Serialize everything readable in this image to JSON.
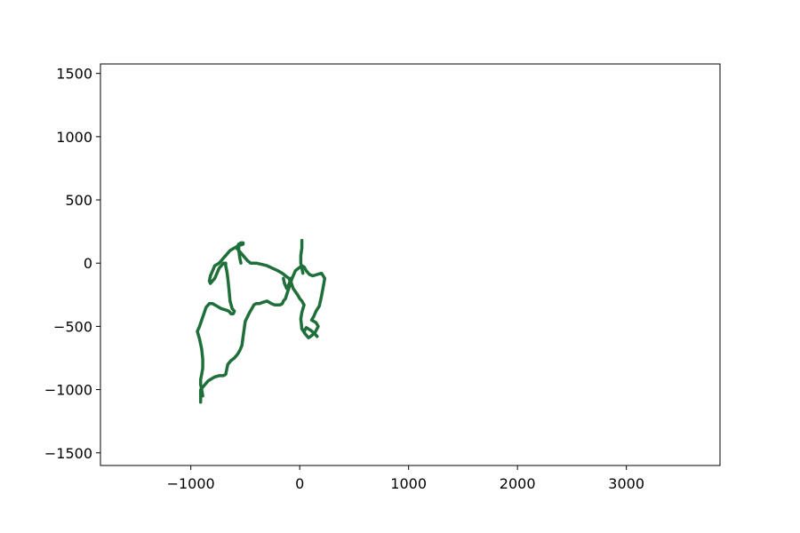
{
  "chart_data": {
    "type": "line",
    "title": "",
    "xlabel": "",
    "ylabel": "",
    "xlim": [
      -1830,
      3860
    ],
    "ylim": [
      -1600,
      1575
    ],
    "grid": false,
    "legend": "none",
    "x_ticks": [
      {
        "value": -1000,
        "label": "−1000"
      },
      {
        "value": 0,
        "label": "0"
      },
      {
        "value": 1000,
        "label": "1000"
      },
      {
        "value": 2000,
        "label": "2000"
      },
      {
        "value": 3000,
        "label": "3000"
      }
    ],
    "y_ticks": [
      {
        "value": 1500,
        "label": "1500"
      },
      {
        "value": 1000,
        "label": "1000"
      },
      {
        "value": 500,
        "label": "500"
      },
      {
        "value": 0,
        "label": "0"
      },
      {
        "value": -500,
        "label": "−500"
      },
      {
        "value": -1000,
        "label": "−1000"
      },
      {
        "value": -1500,
        "label": "−1500"
      }
    ],
    "series": [
      {
        "color": "#1f6f3a",
        "x": [
          -910,
          -910,
          -900,
          -870,
          -840,
          -780,
          -740,
          -700,
          -680,
          -660,
          -630,
          -600,
          -570,
          -550,
          -530,
          -520,
          -510,
          -500,
          -460,
          -420,
          -400,
          -370,
          -340,
          -300,
          -260,
          -230,
          -200,
          -180,
          -160,
          -150,
          -130,
          -120,
          -100,
          -70,
          -40,
          -10,
          20,
          40,
          60,
          90,
          120,
          160,
          200,
          230,
          220,
          200,
          180,
          150,
          130,
          110,
          150,
          170,
          140,
          100,
          80,
          50,
          20,
          10,
          20,
          30,
          40,
          20,
          0,
          -20,
          -60,
          -80,
          -100,
          -130,
          -160,
          -200,
          -250,
          -300,
          -350,
          -400,
          -450,
          -480,
          -500,
          -520,
          -540,
          -560,
          -580,
          -560,
          -540,
          -520,
          -520,
          -560,
          -600,
          -640,
          -680,
          -700,
          -720,
          -740,
          -780,
          -800,
          -820,
          -830,
          -820,
          -780,
          -760,
          -740,
          -720,
          -700,
          -680,
          -680,
          -670,
          -660,
          -650,
          -640,
          -620,
          -600,
          -610,
          -630,
          -650,
          -680,
          -720,
          -760,
          -800,
          -830,
          -860,
          -880,
          -900,
          -920,
          -940,
          -920,
          -900,
          -890,
          -890,
          -900,
          -910,
          -910,
          -900,
          -890
        ],
        "y": [
          -1100,
          -1000,
          -990,
          -960,
          -930,
          -900,
          -890,
          -890,
          -880,
          -800,
          -770,
          -750,
          -720,
          -690,
          -650,
          -580,
          -520,
          -460,
          -390,
          -330,
          -320,
          -320,
          -310,
          -300,
          -320,
          -330,
          -330,
          -330,
          -320,
          -300,
          -280,
          -250,
          -200,
          -120,
          -60,
          -40,
          -20,
          -30,
          -60,
          -90,
          -100,
          -90,
          -80,
          -120,
          -170,
          -260,
          -340,
          -380,
          -420,
          -450,
          -470,
          -500,
          -550,
          -580,
          -590,
          -560,
          -520,
          -440,
          -390,
          -360,
          -330,
          -300,
          -280,
          -250,
          -200,
          -150,
          -120,
          -100,
          -80,
          -60,
          -40,
          -20,
          -10,
          0,
          0,
          20,
          40,
          60,
          80,
          100,
          120,
          150,
          160,
          160,
          150,
          140,
          120,
          100,
          60,
          40,
          20,
          0,
          -20,
          -60,
          -100,
          -140,
          -160,
          -120,
          -80,
          -40,
          -20,
          0,
          0,
          -20,
          -60,
          -120,
          -200,
          -300,
          -360,
          -380,
          -400,
          -400,
          -380,
          -370,
          -360,
          -340,
          -320,
          -320,
          -350,
          -400,
          -450,
          -500,
          -540,
          -600,
          -680,
          -760,
          -830,
          -880,
          -920,
          -960,
          -1000,
          -1050
        ]
      },
      {
        "color": "#1f6f3a",
        "x": [
          20,
          20,
          10,
          10,
          20,
          30
        ],
        "y": [
          180,
          120,
          60,
          0,
          -40,
          -80
        ]
      },
      {
        "color": "#1f6f3a",
        "x": [
          -560,
          -560,
          -550,
          -540
        ],
        "y": [
          150,
          100,
          40,
          0
        ]
      },
      {
        "color": "#1f6f3a",
        "x": [
          -150,
          -140,
          -120,
          -100,
          -80
        ],
        "y": [
          -120,
          -160,
          -200,
          -170,
          -120
        ]
      },
      {
        "color": "#1f6f3a",
        "x": [
          20,
          40,
          60,
          100,
          140,
          160
        ],
        "y": [
          -520,
          -540,
          -510,
          -530,
          -560,
          -580
        ]
      }
    ]
  }
}
